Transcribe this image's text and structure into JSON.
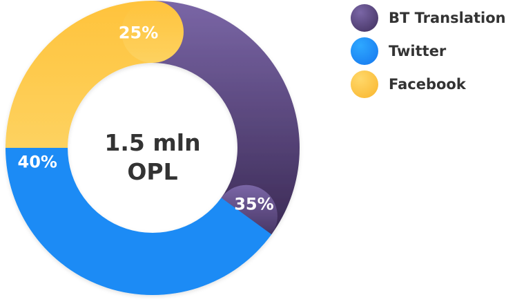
{
  "chart_data": {
    "type": "pie",
    "variant": "donut",
    "center_label": [
      "1.5 mln",
      "OPL"
    ],
    "categories": [
      "BT Translation",
      "Twitter",
      "Facebook"
    ],
    "values": [
      35,
      40,
      25
    ],
    "value_labels": [
      "35%",
      "40%",
      "25%"
    ],
    "colors": [
      "#5a4580",
      "#1a8bf5",
      "#fdc43f"
    ],
    "legend_position": "right"
  },
  "legend": {
    "items": [
      {
        "label": "BT Translation",
        "color_from": "#6e5696",
        "color_to": "#3f2e5c"
      },
      {
        "label": "Twitter",
        "color_from": "#2ea2ff",
        "color_to": "#1676ee"
      },
      {
        "label": "Facebook",
        "color_from": "#ffd45c",
        "color_to": "#f9b52c"
      }
    ]
  }
}
